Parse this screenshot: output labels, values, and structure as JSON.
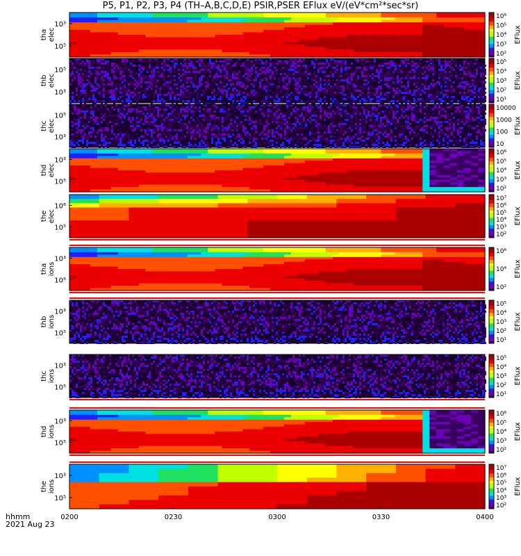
{
  "title": "P5, P1, P2, P3, P4 (TH–A,B,C,D,E) PSIR,PSER EFlux eV/(eV*cm²*sec*sr)",
  "footer": {
    "line1": "hhmm",
    "line2": "2021 Aug 23"
  },
  "colors": [
    "#3a0060",
    "#6a00b8",
    "#2020ff",
    "#0090ff",
    "#00e0e0",
    "#20e060",
    "#c0ff00",
    "#ffff00",
    "#ffb000",
    "#ff5000",
    "#ee0000",
    "#aa0000"
  ],
  "chart_data": {
    "type": "heatmap",
    "x_ticks": [
      "0200",
      "0230",
      "0300",
      "0330",
      "0400"
    ],
    "colorbar_label": "EFlux",
    "panels": [
      {
        "name": "tha elec",
        "ylabel": [
          "tha",
          "elec"
        ],
        "yticks": [
          "10³",
          "10⁵"
        ],
        "cbar_ticks": [
          "10⁶",
          "10⁵",
          "10⁴",
          "10³",
          "10²"
        ],
        "pattern": "smooth",
        "cutoff": null
      },
      {
        "name": "thb elec",
        "ylabel": [
          "thb",
          "elec"
        ],
        "yticks": [
          "10⁵",
          "10³"
        ],
        "cbar_ticks": [
          "10⁵",
          "10⁴",
          "10³",
          "10²",
          "10¹"
        ],
        "pattern": "noise",
        "cutoff": null
      },
      {
        "name": "thc elec",
        "ylabel": [
          "thc",
          "elec"
        ],
        "yticks": [
          "10⁵",
          "10³"
        ],
        "cbar_ticks": [
          "10000",
          "1000",
          "100",
          "10"
        ],
        "pattern": "noise",
        "cutoff": null
      },
      {
        "name": "thd elec",
        "ylabel": [
          "thd",
          "elec"
        ],
        "yticks": [
          "10³",
          "10⁵"
        ],
        "cbar_ticks": [
          "10⁶",
          "10⁵",
          "10⁴",
          "10³",
          "10²"
        ],
        "pattern": "smooth",
        "cutoff": "0343"
      },
      {
        "name": "the elec",
        "ylabel": [
          "the",
          "elec"
        ],
        "yticks": [
          "10⁶",
          "10⁵"
        ],
        "cbar_ticks": [
          "10⁷",
          "10⁶",
          "10⁵",
          "10⁴",
          "10³",
          "10²"
        ],
        "pattern": "blocky",
        "cutoff": null
      },
      {
        "name": "tha ions",
        "ylabel": [
          "tha",
          "ions"
        ],
        "yticks": [
          "10³",
          "10⁵"
        ],
        "cbar_ticks": [
          "10⁶",
          "10⁴",
          "10²"
        ],
        "pattern": "smooth",
        "cutoff": null
      },
      {
        "name": "thb ions",
        "ylabel": [
          "thb",
          "ions"
        ],
        "yticks": [
          "10³",
          "10⁵"
        ],
        "cbar_ticks": [
          "10⁵",
          "10⁴",
          "10³",
          "10²",
          "10¹"
        ],
        "pattern": "noise",
        "cutoff": null
      },
      {
        "name": "thc ions",
        "ylabel": [
          "thc",
          "ions"
        ],
        "yticks": [
          "10³",
          "10⁵"
        ],
        "cbar_ticks": [
          "10⁵",
          "10⁴",
          "10³",
          "10²",
          "10¹"
        ],
        "pattern": "noise",
        "cutoff": null
      },
      {
        "name": "thd ions",
        "ylabel": [
          "thd",
          "ions"
        ],
        "yticks": [
          "10³",
          "10⁵"
        ],
        "cbar_ticks": [
          "10⁶",
          "10⁵",
          "10⁴",
          "10³",
          "10²"
        ],
        "pattern": "smooth",
        "cutoff": "0343"
      },
      {
        "name": "the ions",
        "ylabel": [
          "the",
          "ions"
        ],
        "yticks": [
          "10³",
          "10⁵"
        ],
        "cbar_ticks": [
          "10⁷",
          "10⁶",
          "10⁵",
          "10⁴",
          "10³",
          "10²"
        ],
        "pattern": "blocky",
        "cutoff": null
      }
    ]
  }
}
